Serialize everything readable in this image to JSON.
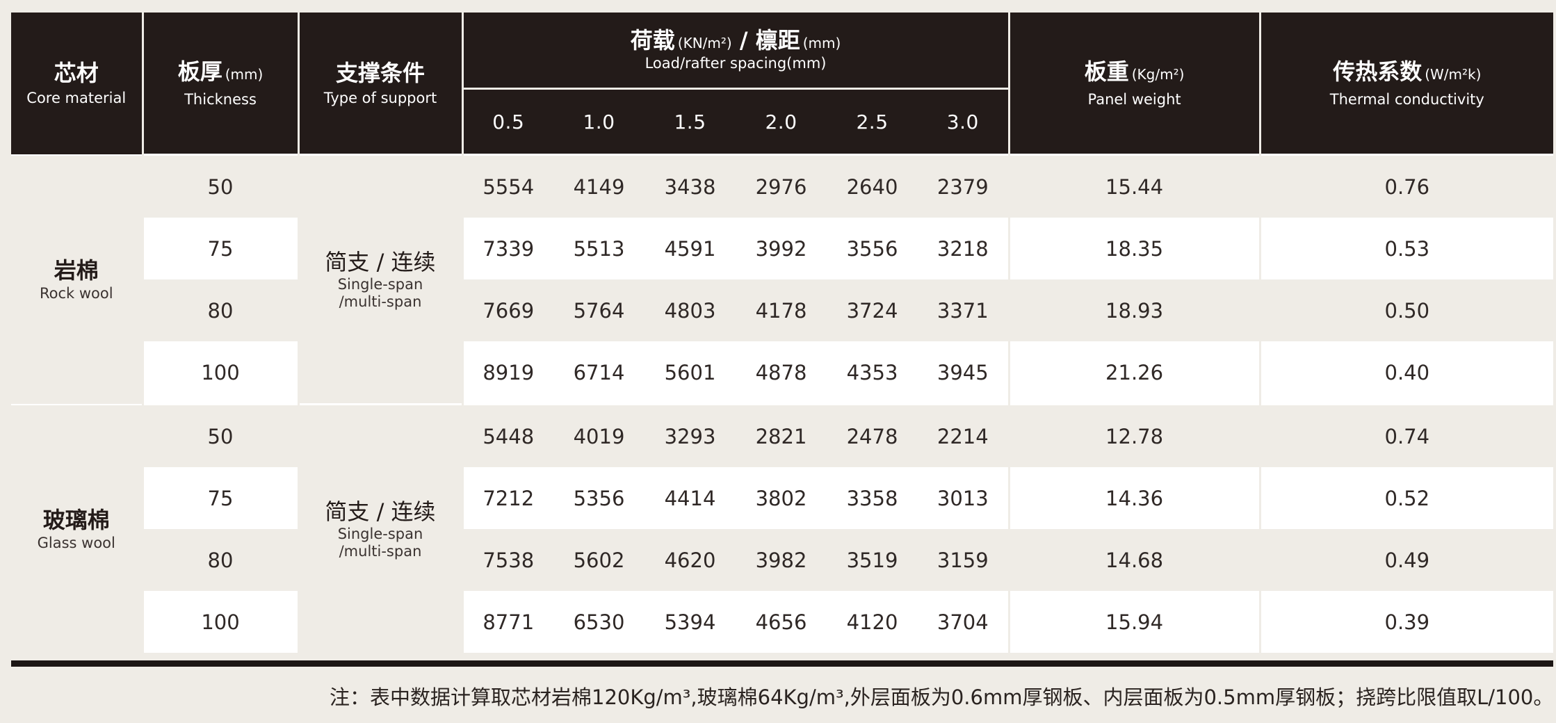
{
  "header": {
    "core": {
      "cn": "芯材",
      "en": "Core material"
    },
    "thickness": {
      "cn": "板厚",
      "unit": "(mm)",
      "en": "Thickness"
    },
    "support": {
      "cn": "支撑条件",
      "en": "Type of support"
    },
    "load": {
      "cn": "荷载",
      "unit": "(KN/m²)",
      "sep": " / ",
      "cn2": "檩距",
      "unit2": "(mm)",
      "en": "Load/rafter spacing(mm)"
    },
    "load_values": [
      "0.5",
      "1.0",
      "1.5",
      "2.0",
      "2.5",
      "3.0"
    ],
    "weight": {
      "cn": "板重",
      "unit": "(Kg/m²)",
      "en": "Panel weight"
    },
    "thermal": {
      "cn": "传热系数",
      "unit": "(W/m²k)",
      "en": "Thermal conductivity"
    }
  },
  "groups": [
    {
      "core_cn": "岩棉",
      "core_en": "Rock wool",
      "support_cn": "简支 / 连续",
      "support_en1": "Single-span",
      "support_en2": "/multi-span",
      "rows": [
        {
          "thickness": "50",
          "loads": [
            "5554",
            "4149",
            "3438",
            "2976",
            "2640",
            "2379"
          ],
          "weight": "15.44",
          "thermal": "0.76"
        },
        {
          "thickness": "75",
          "loads": [
            "7339",
            "5513",
            "4591",
            "3992",
            "3556",
            "3218"
          ],
          "weight": "18.35",
          "thermal": "0.53"
        },
        {
          "thickness": "80",
          "loads": [
            "7669",
            "5764",
            "4803",
            "4178",
            "3724",
            "3371"
          ],
          "weight": "18.93",
          "thermal": "0.50"
        },
        {
          "thickness": "100",
          "loads": [
            "8919",
            "6714",
            "5601",
            "4878",
            "4353",
            "3945"
          ],
          "weight": "21.26",
          "thermal": "0.40"
        }
      ]
    },
    {
      "core_cn": "玻璃棉",
      "core_en": "Glass wool",
      "support_cn": "简支 / 连续",
      "support_en1": "Single-span",
      "support_en2": "/multi-span",
      "rows": [
        {
          "thickness": "50",
          "loads": [
            "5448",
            "4019",
            "3293",
            "2821",
            "2478",
            "2214"
          ],
          "weight": "12.78",
          "thermal": "0.74"
        },
        {
          "thickness": "75",
          "loads": [
            "7212",
            "5356",
            "4414",
            "3802",
            "3358",
            "3013"
          ],
          "weight": "14.36",
          "thermal": "0.52"
        },
        {
          "thickness": "80",
          "loads": [
            "7538",
            "5602",
            "4620",
            "3982",
            "3519",
            "3159"
          ],
          "weight": "14.68",
          "thermal": "0.49"
        },
        {
          "thickness": "100",
          "loads": [
            "8771",
            "6530",
            "5394",
            "4656",
            "4120",
            "3704"
          ],
          "weight": "15.94",
          "thermal": "0.39"
        }
      ]
    }
  ],
  "note": "注：表中数据计算取芯材岩棉120Kg/m³,玻璃棉64Kg/m³,外层面板为0.6mm厚钢板、内层面板为0.5mm厚钢板；挠跨比限值取L/100。",
  "colors": {
    "header_bg": "#231b19",
    "page_bg": "#efece6",
    "row_white": "#ffffff"
  }
}
